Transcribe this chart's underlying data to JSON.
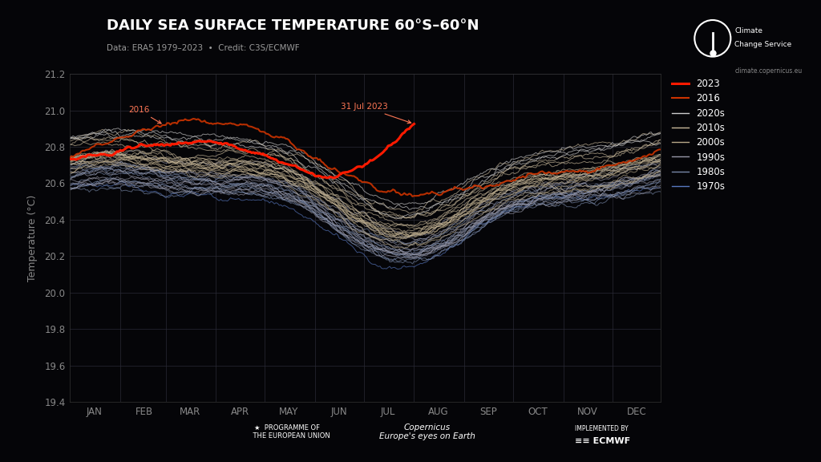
{
  "title": "DAILY SEA SURFACE TEMPERATURE 60°S–60°N",
  "subtitle": "Data: ERA5 1979–2023  •  Credit: C3S/ECMWF",
  "ylabel": "Temperature (°C)",
  "ylim": [
    19.4,
    21.2
  ],
  "yticks": [
    19.4,
    19.6,
    19.8,
    20.0,
    20.2,
    20.4,
    20.6,
    20.8,
    21.0,
    21.2
  ],
  "months": [
    "JAN",
    "FEB",
    "MAR",
    "APR",
    "MAY",
    "JUN",
    "JUL",
    "AUG",
    "SEP",
    "OCT",
    "NOV",
    "DEC"
  ],
  "month_starts": [
    0,
    31,
    59,
    90,
    120,
    151,
    181,
    212,
    243,
    273,
    304,
    334
  ],
  "bg_color": "#050508",
  "grid_color": "#2a2a35",
  "title_color": "#ffffff",
  "subtitle_color": "#999999",
  "axis_color": "#888888",
  "decade_colors": {
    "2020s": "#cccccc",
    "2010s": "#c8b89a",
    "2000s": "#b8a888",
    "1990s": "#9898a8",
    "1980s": "#7888a8",
    "1970s": "#5878c0"
  },
  "decade_offsets": {
    "2020s": 0.2,
    "2010s": 0.14,
    "2000s": 0.08,
    "1990s": 0.02,
    "1980s": -0.04,
    "1970s": -0.1
  },
  "color_2023": "#ff1a00",
  "color_2016": "#cc3300",
  "annotation_color": "#ff7755",
  "seed": 42
}
